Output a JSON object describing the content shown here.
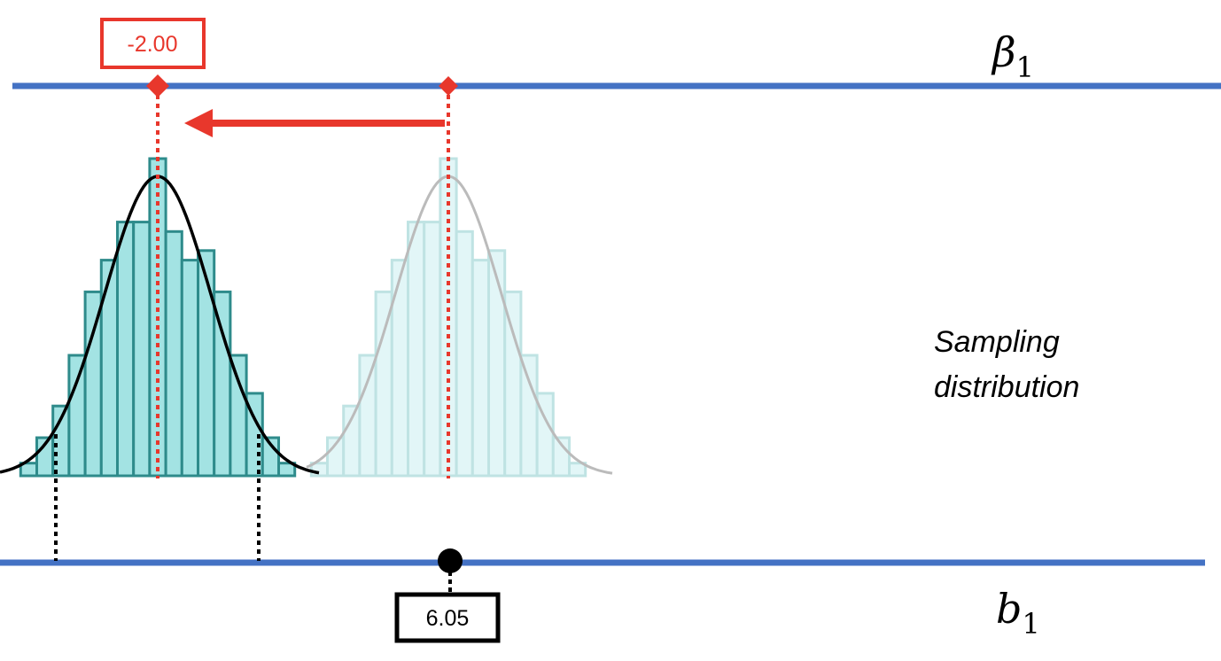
{
  "top_axis": {
    "symbol": "β",
    "subscript": "1",
    "line_color": "#4472C4"
  },
  "bottom_axis": {
    "symbol": "b",
    "subscript": "1",
    "line_color": "#4472C4"
  },
  "hypothesized_value": {
    "label": "-2.00",
    "color": "#E8372C"
  },
  "sample_estimate": {
    "label": "6.05",
    "color": "#000000"
  },
  "caption": {
    "line1": "Sampling",
    "line2": "distribution"
  },
  "shift_arrow": {
    "direction": "left",
    "color": "#E8372C"
  },
  "sampling_distribution": {
    "bin_heights_relative": [
      0.04,
      0.12,
      0.22,
      0.38,
      0.58,
      0.68,
      0.8,
      0.8,
      1.0,
      0.77,
      0.68,
      0.71,
      0.58,
      0.38,
      0.26,
      0.12,
      0.04
    ],
    "fill_color": "#A3E3E3",
    "edge_color": "#2E8B8B",
    "curve_color": "#000000"
  },
  "original_distribution": {
    "fill_color": "#E2F6F7",
    "edge_color": "#BFE3E3",
    "curve_color": "#BBBBBB"
  }
}
